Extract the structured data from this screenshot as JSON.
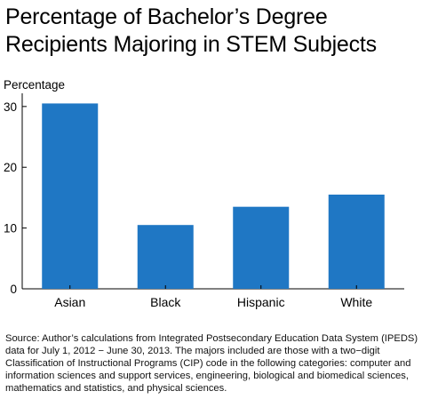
{
  "title": {
    "line1": "Percentage of Bachelor’s Degree",
    "line2": "Recipients Majoring in STEM Subjects"
  },
  "chart_data": {
    "type": "bar",
    "title": "Percentage of Bachelor’s Degree Recipients Majoring in STEM Subjects",
    "ylabel": "Percentage",
    "xlabel": "",
    "categories": [
      "Asian",
      "Black",
      "Hispanic",
      "White"
    ],
    "values": [
      30.5,
      10.5,
      13.5,
      15.5
    ],
    "ylim": [
      0,
      31
    ],
    "yticks": [
      0,
      10,
      20,
      30
    ],
    "grid": false,
    "legend": "none",
    "bar_color": "#1f77c4"
  },
  "source": {
    "text": "Source: Author’s calculations from Integrated Postsecondary Education Data System (IPEDS) data for July 1, 2012 − June 30, 2013. The majors included are those with a two−digit Classification of Instructional Programs (CIP) code in the following categories: computer and information sciences and support services, engineering, biological and biomedical sciences, mathematics and statistics, and physical sciences."
  }
}
